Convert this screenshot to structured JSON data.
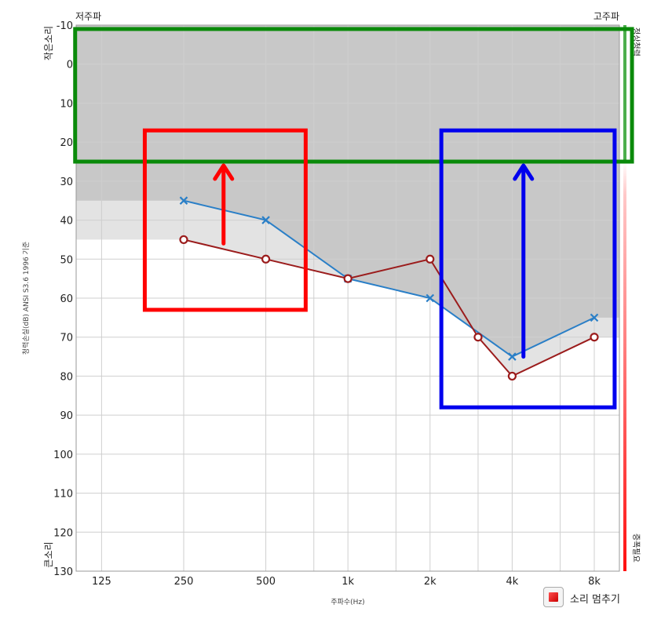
{
  "chart_data": {
    "type": "line",
    "title": "",
    "xlabel": "주파수(Hz)",
    "ylabel": "청력손실(dB) ANSI S3.6 1996 기준",
    "y_top_label": "작은소리",
    "y_bottom_label": "큰소리",
    "x_left_label": "저주파",
    "x_right_label": "고주파",
    "scale_top_label": "정상청력",
    "scale_bottom_label": "증폭필요",
    "categories": [
      "125",
      "250",
      "500",
      "1k",
      "2k",
      "4k",
      "8k"
    ],
    "y_ticks": [
      "-10",
      "0",
      "10",
      "20",
      "30",
      "40",
      "50",
      "60",
      "70",
      "80",
      "90",
      "100",
      "110",
      "120",
      "130"
    ],
    "ylim": [
      -10,
      130
    ],
    "y_inverted": true,
    "grid": true,
    "series": [
      {
        "marker": "x",
        "color": "#2a7fc7",
        "points": [
          {
            "x": "250",
            "y": 35
          },
          {
            "x": "500",
            "y": 40
          },
          {
            "x": "1k",
            "y": 55
          },
          {
            "x": "2k",
            "y": 60
          },
          {
            "x": "4k",
            "y": 75
          },
          {
            "x": "8k",
            "y": 65
          }
        ]
      },
      {
        "marker": "o",
        "color": "#9b1c1c",
        "points": [
          {
            "x": "250",
            "y": 45
          },
          {
            "x": "500",
            "y": 50
          },
          {
            "x": "1k",
            "y": 55
          },
          {
            "x": "2k",
            "y": 50
          },
          {
            "x": "3k",
            "y": 70
          },
          {
            "x": "4k",
            "y": 80
          },
          {
            "x": "8k",
            "y": 70
          }
        ]
      }
    ],
    "annotations": [
      {
        "shape": "rect",
        "color": "#0a8a0a",
        "x_from": "100",
        "x_to": "11000",
        "y_from": -9,
        "y_to": 25
      },
      {
        "shape": "rect",
        "color": "#ff0000",
        "x_from": "180",
        "x_to": "700",
        "y_from": 17,
        "y_to": 63
      },
      {
        "shape": "rect",
        "color": "#0000ee",
        "x_from": "2200",
        "x_to": "9500",
        "y_from": 17,
        "y_to": 88
      },
      {
        "shape": "arrow",
        "color": "#ff0000",
        "x": "350",
        "y_from": 46,
        "y_to": 26
      },
      {
        "shape": "arrow",
        "color": "#0000ee",
        "x": "4400",
        "y_from": 75,
        "y_to": 26
      }
    ]
  },
  "controls": {
    "stop_sound_label": "소리 멈추기",
    "stop_icon": "stop-square-icon"
  }
}
